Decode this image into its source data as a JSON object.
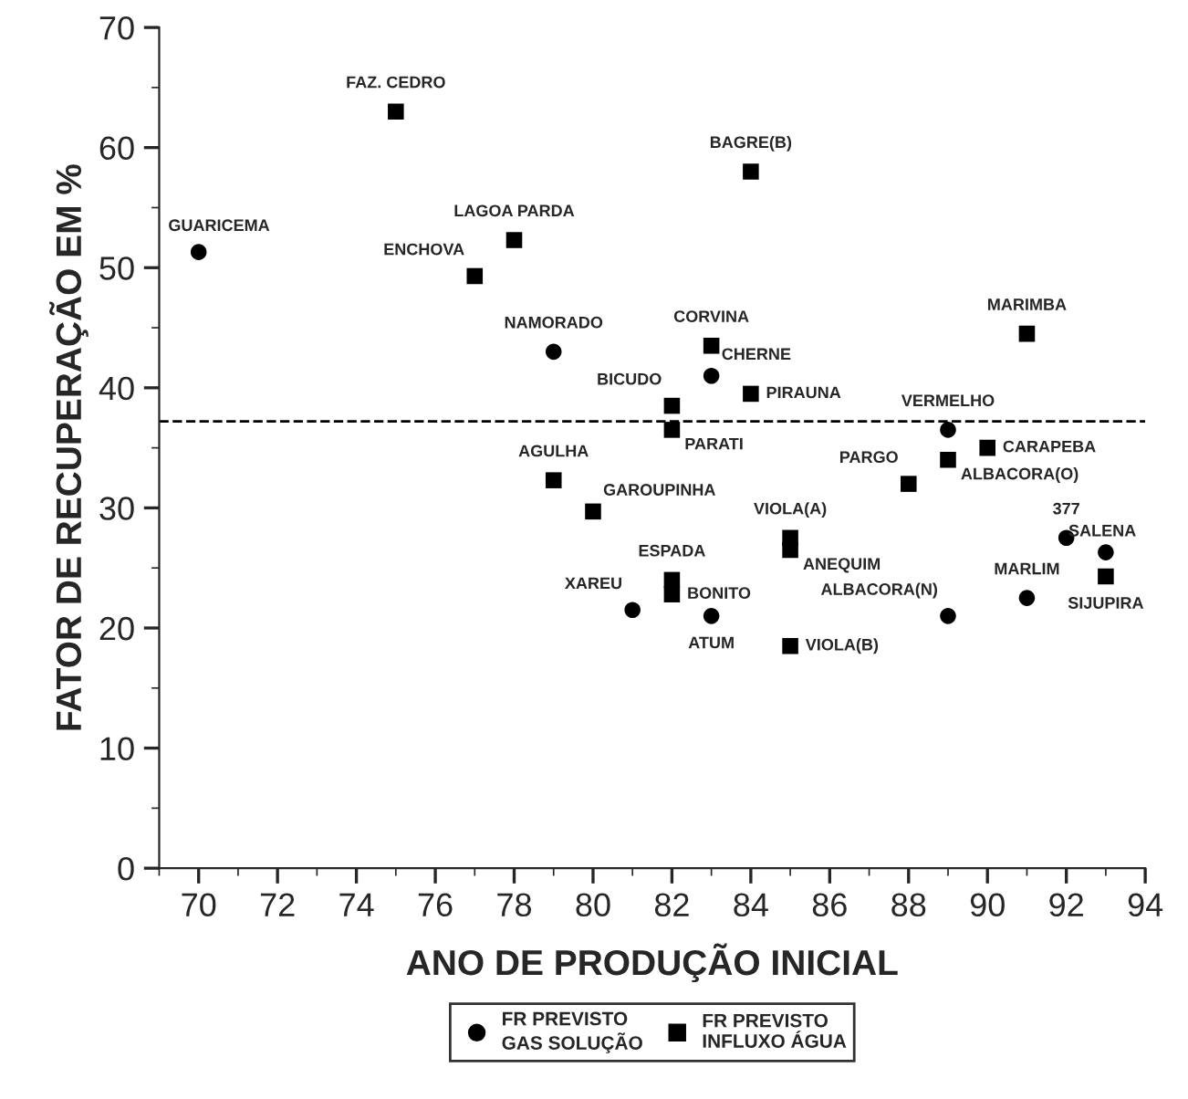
{
  "chart_data": {
    "type": "scatter",
    "xlabel": "ANO DE PRODUÇÃO INICIAL",
    "ylabel": "FATOR DE RECUPERAÇÃO EM %",
    "xlim": [
      69,
      94
    ],
    "xticks": [
      70,
      72,
      74,
      76,
      78,
      80,
      82,
      84,
      86,
      88,
      90,
      92,
      94
    ],
    "ylim": [
      0,
      70
    ],
    "yticks": [
      0,
      10,
      20,
      30,
      40,
      50,
      60,
      70
    ],
    "grid": false,
    "legend": "bottom",
    "series": [
      {
        "name": "FR PREVISTO\nGAS SOLUÇÃO",
        "color": "#000000",
        "marker": "circle",
        "x": [
          70,
          79,
          83,
          89,
          81,
          83,
          89,
          91,
          92,
          93
        ],
        "values": [
          51.3,
          43,
          41,
          36.5,
          21.5,
          21,
          21,
          22.5,
          27.5,
          26.3
        ]
      },
      {
        "name": "FR PREVISTO\nINFLUXO ÁGUA",
        "color": "#000000",
        "marker": "square",
        "x": [
          75,
          84,
          78,
          77,
          91,
          83,
          84,
          82,
          82,
          90,
          89,
          88,
          79,
          80,
          85,
          85,
          82,
          82,
          85,
          93
        ],
        "values": [
          63,
          58,
          52.3,
          49.3,
          44.5,
          43.5,
          39.5,
          38.5,
          36.5,
          35,
          34,
          32,
          32.3,
          29.7,
          27.5,
          26.5,
          24,
          22.8,
          18.5,
          24.3
        ]
      }
    ],
    "ref_lines": [
      {
        "axis": "y",
        "value": 37.2,
        "line_style": "dashed",
        "color": "#000000"
      }
    ],
    "annotations": [
      {
        "text": "GUARICEMA",
        "x": 70,
        "y": 51.3
      },
      {
        "text": "NAMORADO",
        "x": 79,
        "y": 43
      },
      {
        "text": "CHERNE",
        "x": 83,
        "y": 41
      },
      {
        "text": "VERMELHO",
        "x": 89,
        "y": 36.5
      },
      {
        "text": "XAREU",
        "x": 81,
        "y": 21.5
      },
      {
        "text": "ATUM",
        "x": 83,
        "y": 21
      },
      {
        "text": "ALBACORA(N)",
        "x": 89,
        "y": 21
      },
      {
        "text": "MARLIM",
        "x": 91,
        "y": 22.5
      },
      {
        "text": "377",
        "x": 92,
        "y": 27.5
      },
      {
        "text": "SALENA",
        "x": 93,
        "y": 26.3
      },
      {
        "text": "FAZ. CEDRO",
        "x": 75,
        "y": 63
      },
      {
        "text": "BAGRE(B)",
        "x": 84,
        "y": 58
      },
      {
        "text": "LAGOA PARDA",
        "x": 78,
        "y": 52.3
      },
      {
        "text": "ENCHOVA",
        "x": 77,
        "y": 49.3
      },
      {
        "text": "MARIMBA",
        "x": 91,
        "y": 44.5
      },
      {
        "text": "CORVINA",
        "x": 83,
        "y": 43.5
      },
      {
        "text": "PIRAUNA",
        "x": 84,
        "y": 39.5
      },
      {
        "text": "BICUDO",
        "x": 82,
        "y": 38.5
      },
      {
        "text": "PARATI",
        "x": 82,
        "y": 36.5
      },
      {
        "text": "CARAPEBA",
        "x": 90,
        "y": 35
      },
      {
        "text": "ALBACORA(O)",
        "x": 89,
        "y": 34
      },
      {
        "text": "PARGO",
        "x": 88,
        "y": 32
      },
      {
        "text": "AGULHA",
        "x": 79,
        "y": 32.3
      },
      {
        "text": "GAROUPINHA",
        "x": 80,
        "y": 29.7
      },
      {
        "text": "VIOLA(A)",
        "x": 85,
        "y": 27.5
      },
      {
        "text": "ANEQUIM",
        "x": 85,
        "y": 26.5
      },
      {
        "text": "ESPADA",
        "x": 82,
        "y": 24
      },
      {
        "text": "BONITO",
        "x": 82,
        "y": 22.8
      },
      {
        "text": "VIOLA(B)",
        "x": 85,
        "y": 18.5
      },
      {
        "text": "SIJUPIRA",
        "x": 93,
        "y": 24.3
      }
    ]
  }
}
